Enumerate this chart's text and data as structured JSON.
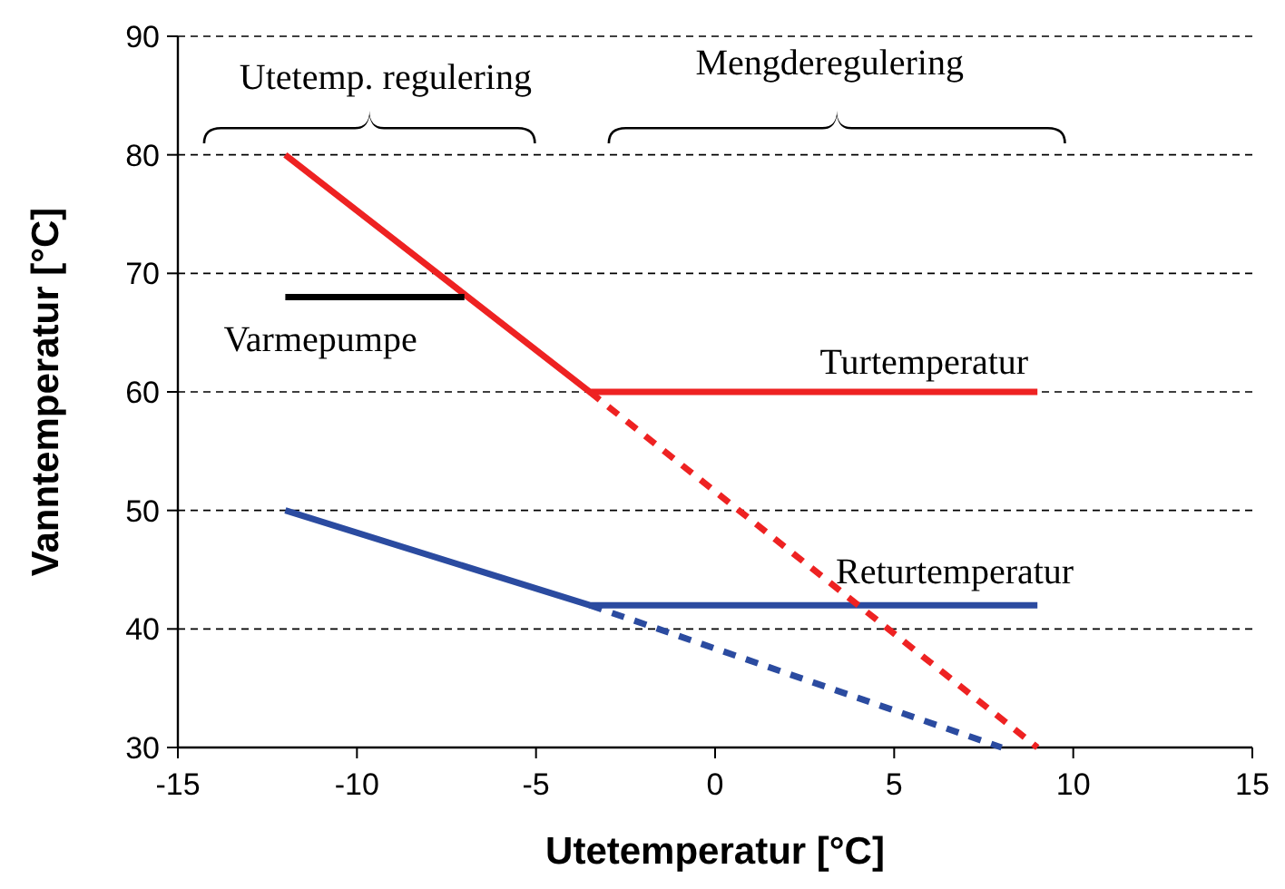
{
  "chart_data": {
    "type": "line",
    "xlabel": "Utetemperatur [°C]",
    "ylabel": "Vanntemperatur [°C]",
    "xlim": [
      -15,
      15
    ],
    "xticks": [
      -15,
      -10,
      -5,
      0,
      5,
      10,
      15
    ],
    "ylim": [
      30,
      90
    ],
    "yticks": [
      30,
      40,
      50,
      60,
      70,
      80,
      90
    ],
    "grid": "y",
    "annotations": [
      "Utetemp. regulering",
      "Mengderegulering"
    ],
    "series": [
      {
        "name": "Turtemperatur",
        "color": "#ee2222",
        "x": [
          -12,
          -3.5,
          9
        ],
        "values": [
          80,
          60,
          60
        ],
        "line_style": "solid"
      },
      {
        "name": "Returtemperatur",
        "color": "#2b4ba0",
        "x": [
          -12,
          -3.5,
          9
        ],
        "values": [
          50,
          42,
          42
        ],
        "line_style": "solid"
      },
      {
        "name": "Varmepumpe",
        "color": "#000000",
        "x": [
          -12,
          -7
        ],
        "values": [
          68,
          68
        ],
        "line_style": "solid"
      },
      {
        "color": "#ee2222",
        "x": [
          -3.5,
          9
        ],
        "values": [
          60,
          30
        ],
        "line_style": "dashed"
      },
      {
        "color": "#2b4ba0",
        "x": [
          -3.5,
          8
        ],
        "values": [
          42,
          30
        ],
        "line_style": "dashed"
      }
    ]
  }
}
